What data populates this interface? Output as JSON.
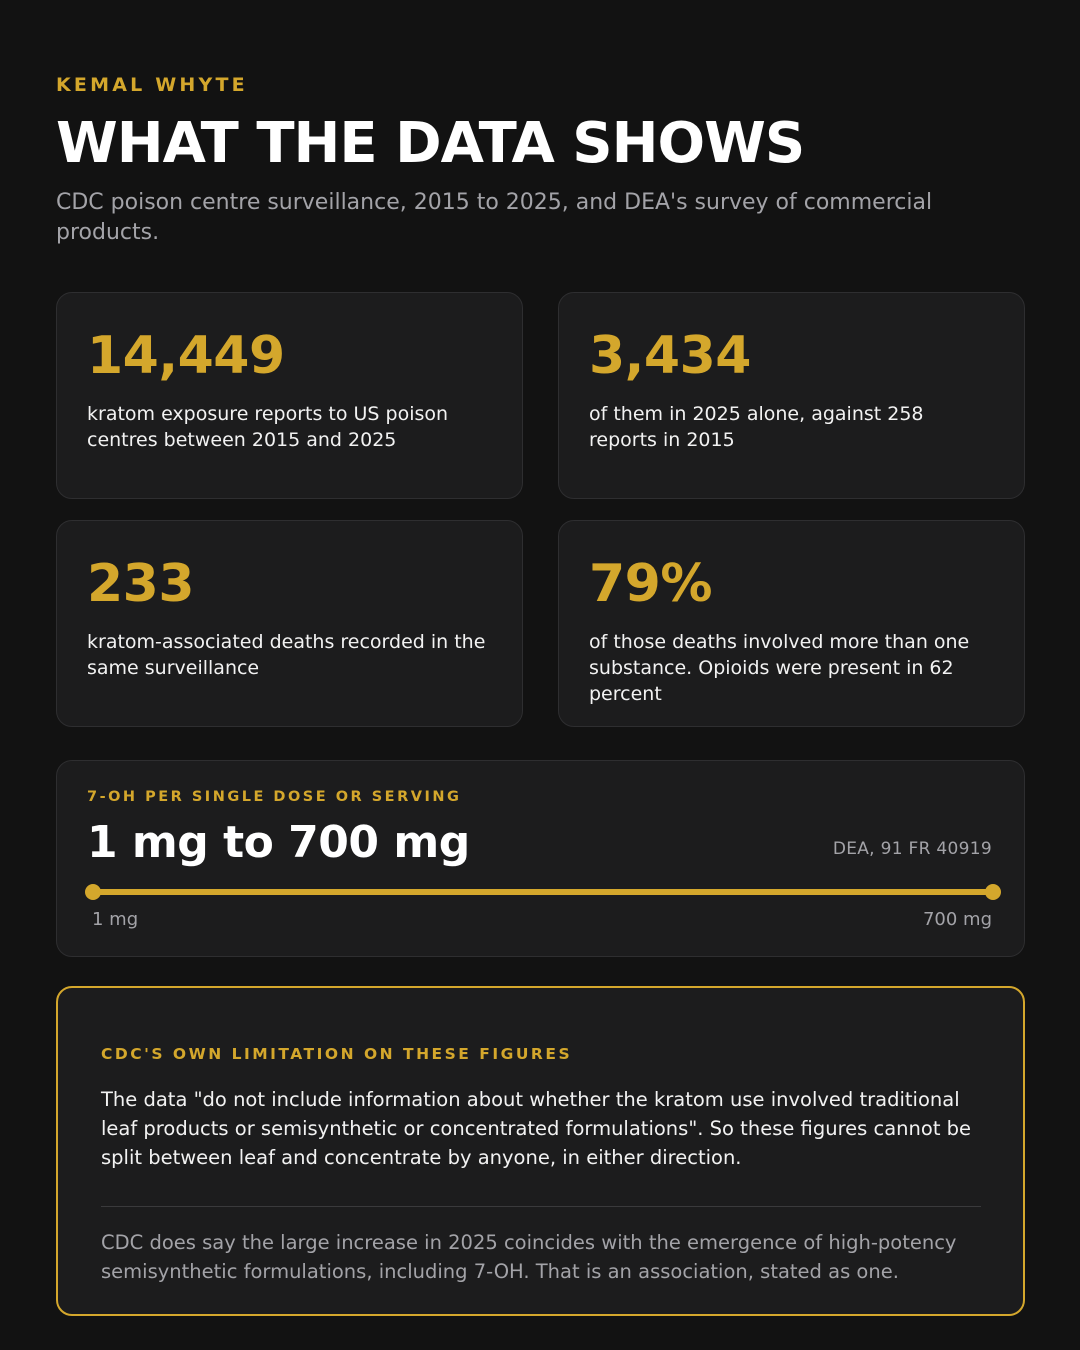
{
  "header": {
    "author": "KEMAL WHYTE",
    "title": "WHAT THE DATA SHOWS",
    "subtitle": "CDC poison centre surveillance, 2015 to 2025, and DEA's survey of commercial products."
  },
  "stats": [
    {
      "value": "14,449",
      "description": "kratom exposure reports to US poison centres between 2015 and 2025"
    },
    {
      "value": "3,434",
      "description": "of them in 2025 alone, against 258 reports in 2015"
    },
    {
      "value": "233",
      "description": "kratom-associated deaths recorded in the same surveillance"
    },
    {
      "value": "79%",
      "description": "of those deaths involved more than one substance. Opioids were present in 62 percent"
    }
  ],
  "range": {
    "label": "7-OH PER SINGLE DOSE OR SERVING",
    "value": "1 mg to 700 mg",
    "source": "DEA, 91 FR 40919",
    "min_label": "1 mg",
    "max_label": "700 mg"
  },
  "note": {
    "label": "CDC'S OWN LIMITATION ON THESE FIGURES",
    "body": "The data \"do not include information about whether the kratom use involved traditional leaf products or semisynthetic or concentrated formulations\". So these figures cannot be split between leaf and concentrate by anyone, in either direction.",
    "footer": "CDC does say the large increase in 2025 coincides with the emergence of high-potency semisynthetic formulations, including 7-OH. That is an association, stated as one."
  },
  "colors": {
    "accent": "#d4a72c",
    "background": "#121212",
    "card": "#1c1c1d"
  }
}
